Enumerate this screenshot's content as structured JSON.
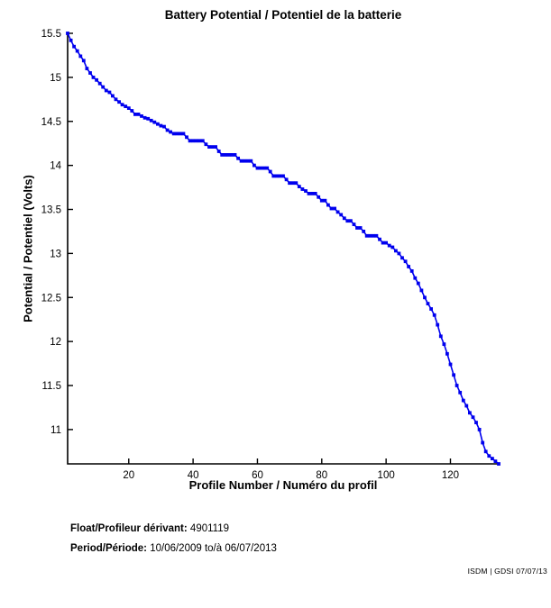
{
  "title": "Battery Potential / Potentiel de la batterie",
  "colors": {
    "line": "#0000EE",
    "axis": "#000000",
    "text": "#000000",
    "background": "#FFFFFF"
  },
  "footer": {
    "float_label": "Float/Profileur dérivant:",
    "float_value": "4901119",
    "period_label": "Period/Période:",
    "period_value": "10/06/2009 to/à 06/07/2013",
    "watermark": "ISDM | GDSI 07/07/13"
  },
  "chart_data": {
    "type": "line",
    "title": "Battery Potential / Potentiel de la batterie",
    "xlabel": "Profile Number / Numéro du profil",
    "ylabel": "Potential / Potentiel (Volts)",
    "x_start": 1,
    "x_step": 1,
    "values": [
      15.5,
      15.42,
      15.35,
      15.3,
      15.24,
      15.19,
      15.1,
      15.05,
      15.0,
      14.97,
      14.93,
      14.89,
      14.85,
      14.83,
      14.79,
      14.75,
      14.72,
      14.69,
      14.67,
      14.65,
      14.62,
      14.58,
      14.58,
      14.56,
      14.54,
      14.53,
      14.51,
      14.49,
      14.47,
      14.45,
      14.44,
      14.4,
      14.38,
      14.36,
      14.36,
      14.36,
      14.36,
      14.32,
      14.28,
      14.28,
      14.28,
      14.28,
      14.28,
      14.24,
      14.21,
      14.21,
      14.21,
      14.16,
      14.12,
      14.12,
      14.12,
      14.12,
      14.12,
      14.08,
      14.05,
      14.05,
      14.05,
      14.05,
      14.0,
      13.97,
      13.97,
      13.97,
      13.97,
      13.93,
      13.88,
      13.88,
      13.88,
      13.88,
      13.84,
      13.8,
      13.8,
      13.8,
      13.76,
      13.73,
      13.71,
      13.68,
      13.68,
      13.68,
      13.64,
      13.6,
      13.6,
      13.55,
      13.51,
      13.51,
      13.47,
      13.44,
      13.4,
      13.37,
      13.37,
      13.33,
      13.29,
      13.29,
      13.25,
      13.2,
      13.2,
      13.2,
      13.2,
      13.16,
      13.12,
      13.12,
      13.09,
      13.07,
      13.03,
      13.0,
      12.95,
      12.91,
      12.85,
      12.8,
      12.72,
      12.66,
      12.58,
      12.5,
      12.43,
      12.37,
      12.3,
      12.19,
      12.06,
      11.97,
      11.86,
      11.74,
      11.62,
      11.5,
      11.42,
      11.33,
      11.27,
      11.19,
      11.14,
      11.08,
      11.0,
      10.85,
      10.75,
      10.7,
      10.67,
      10.64,
      10.61
    ],
    "xlim": [
      1,
      135
    ],
    "ylim": [
      10.61,
      15.5
    ],
    "xticks": [
      20,
      40,
      60,
      80,
      100,
      120
    ],
    "yticks": [
      11,
      11.5,
      12,
      12.5,
      13,
      13.5,
      14,
      14.5,
      15,
      15.5
    ],
    "grid": false,
    "legend": null,
    "marker": "square",
    "line_color": "#0000EE"
  }
}
